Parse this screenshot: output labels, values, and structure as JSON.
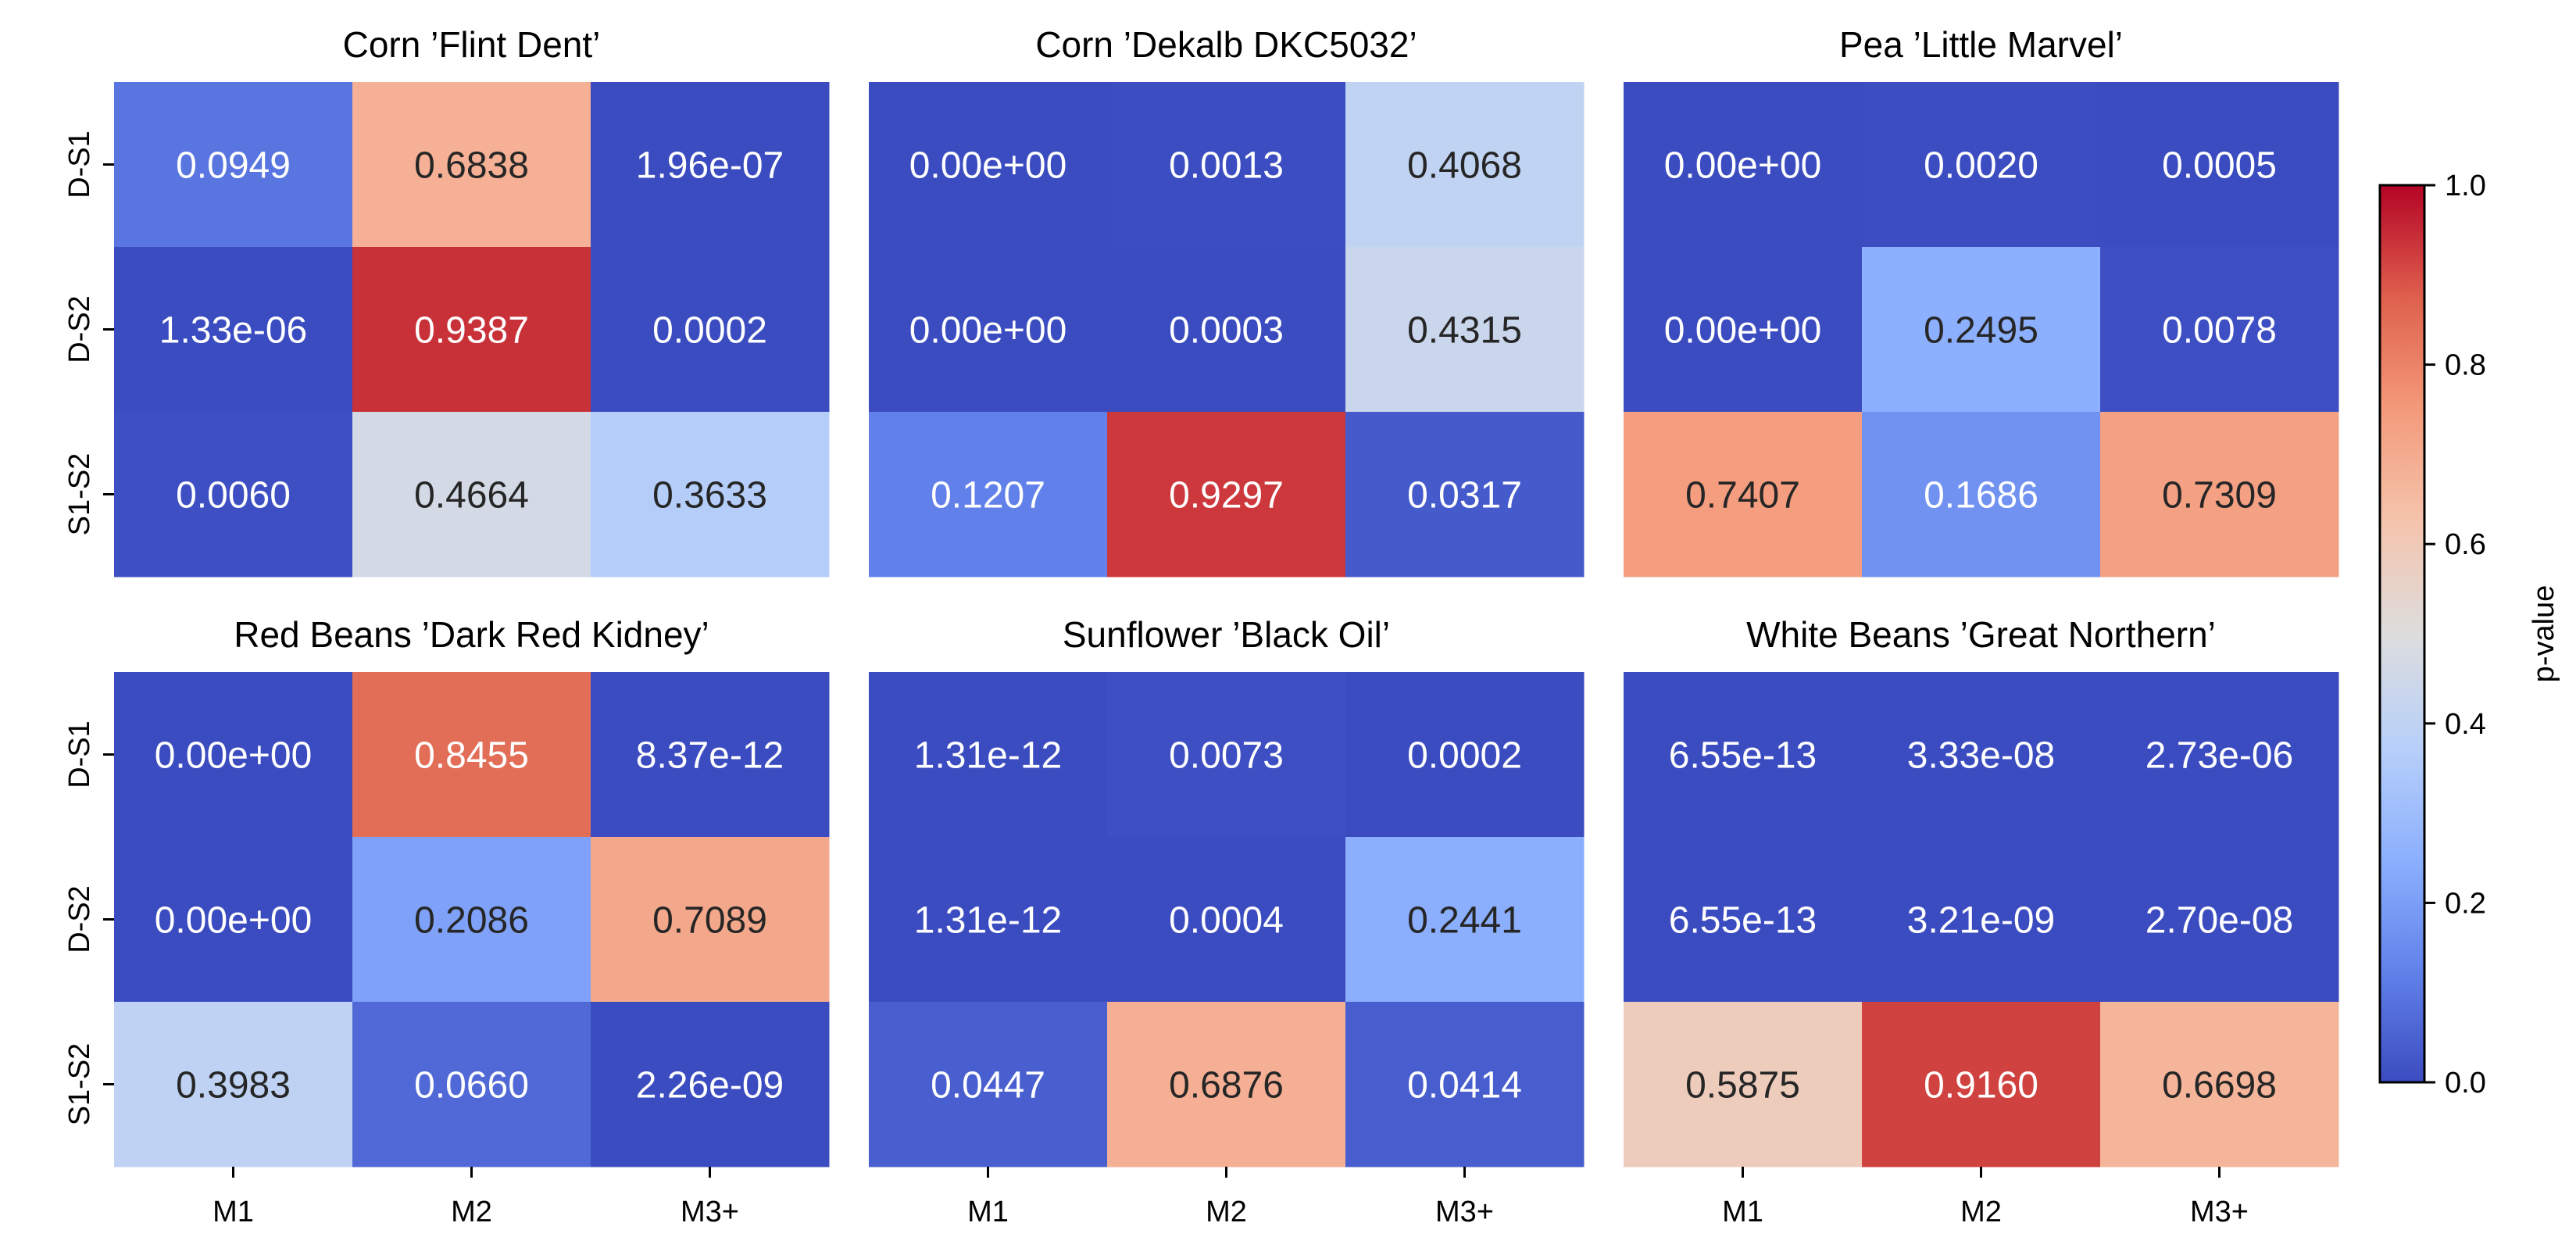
{
  "chart_data": {
    "type": "heatmap",
    "colormap": "coolwarm",
    "value_range": [
      0,
      1
    ],
    "rows": [
      "D-S1",
      "D-S2",
      "S1-S2"
    ],
    "columns": [
      "M1",
      "M2",
      "M3+"
    ],
    "panels": [
      {
        "title": "Corn ’Flint Dent’",
        "values": [
          [
            0.0949,
            0.6838,
            1.96e-07
          ],
          [
            1.33e-06,
            0.9387,
            0.0002
          ],
          [
            0.006,
            0.4664,
            0.3633
          ]
        ],
        "labels": [
          [
            "0.0949",
            "0.6838",
            "1.96e-07"
          ],
          [
            "1.33e-06",
            "0.9387",
            "0.0002"
          ],
          [
            "0.0060",
            "0.4664",
            "0.3633"
          ]
        ]
      },
      {
        "title": "Corn ’Dekalb DKC5032’",
        "values": [
          [
            0,
            0.0013,
            0.4068
          ],
          [
            0,
            0.0003,
            0.4315
          ],
          [
            0.1207,
            0.9297,
            0.0317
          ]
        ],
        "labels": [
          [
            "0.00e+00",
            "0.0013",
            "0.4068"
          ],
          [
            "0.00e+00",
            "0.0003",
            "0.4315"
          ],
          [
            "0.1207",
            "0.9297",
            "0.0317"
          ]
        ]
      },
      {
        "title": "Pea ’Little Marvel’",
        "values": [
          [
            0,
            0.002,
            0.0005
          ],
          [
            0,
            0.2495,
            0.0078
          ],
          [
            0.7407,
            0.1686,
            0.7309
          ]
        ],
        "labels": [
          [
            "0.00e+00",
            "0.0020",
            "0.0005"
          ],
          [
            "0.00e+00",
            "0.2495",
            "0.0078"
          ],
          [
            "0.7407",
            "0.1686",
            "0.7309"
          ]
        ]
      },
      {
        "title": "Red Beans ’Dark Red Kidney’",
        "values": [
          [
            0,
            0.8455,
            8.37e-12
          ],
          [
            0,
            0.2086,
            0.7089
          ],
          [
            0.3983,
            0.066,
            2.26e-09
          ]
        ],
        "labels": [
          [
            "0.00e+00",
            "0.8455",
            "8.37e-12"
          ],
          [
            "0.00e+00",
            "0.2086",
            "0.7089"
          ],
          [
            "0.3983",
            "0.0660",
            "2.26e-09"
          ]
        ]
      },
      {
        "title": "Sunflower ’Black Oil’",
        "values": [
          [
            1.31e-12,
            0.0073,
            0.0002
          ],
          [
            1.31e-12,
            0.0004,
            0.2441
          ],
          [
            0.0447,
            0.6876,
            0.0414
          ]
        ],
        "labels": [
          [
            "1.31e-12",
            "0.0073",
            "0.0002"
          ],
          [
            "1.31e-12",
            "0.0004",
            "0.2441"
          ],
          [
            "0.0447",
            "0.6876",
            "0.0414"
          ]
        ]
      },
      {
        "title": "White Beans ’Great Northern’",
        "values": [
          [
            6.55e-13,
            3.33e-08,
            2.73e-06
          ],
          [
            6.55e-13,
            3.21e-09,
            2.7e-08
          ],
          [
            0.5875,
            0.916,
            0.6698
          ]
        ],
        "labels": [
          [
            "6.55e-13",
            "3.33e-08",
            "2.73e-06"
          ],
          [
            "6.55e-13",
            "3.21e-09",
            "2.70e-08"
          ],
          [
            "0.5875",
            "0.9160",
            "0.6698"
          ]
        ]
      }
    ],
    "colorbar": {
      "label": "p-value",
      "ticks": [
        0.0,
        0.2,
        0.4,
        0.6,
        0.8,
        1.0
      ],
      "tick_labels": [
        "0.0",
        "0.2",
        "0.4",
        "0.6",
        "0.8",
        "1.0"
      ]
    }
  }
}
